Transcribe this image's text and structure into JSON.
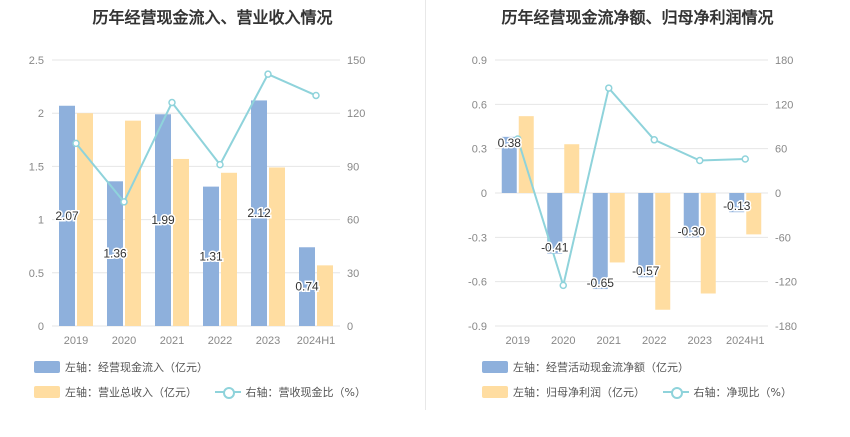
{
  "colors": {
    "bar_left": "#8eb0dc",
    "bar_right": "#ffdda1",
    "line": "#8fd3db",
    "axis_text": "#888888",
    "grid": "#e6e6e6"
  },
  "chart_data": [
    {
      "type": "bar",
      "title": "历年经营现金流入、营业收入情况",
      "categories": [
        "2019",
        "2020",
        "2021",
        "2022",
        "2023",
        "2024H1"
      ],
      "left_axis": {
        "ylim": [
          0,
          2.5
        ],
        "ticks": [
          "0",
          "0.5",
          "1",
          "1.5",
          "2",
          "2.5"
        ]
      },
      "right_axis": {
        "ylim": [
          0,
          150
        ],
        "ticks": [
          "0",
          "30",
          "60",
          "90",
          "120",
          "150"
        ]
      },
      "series": [
        {
          "name": "左轴：经营现金流入（亿元）",
          "axis": "left",
          "kind": "bar",
          "values": [
            2.07,
            1.36,
            1.99,
            1.31,
            2.12,
            0.74
          ],
          "labels": [
            "2.07",
            "1.36",
            "1.99",
            "1.31",
            "2.12",
            "0.74"
          ]
        },
        {
          "name": "左轴：营业总收入（亿元）",
          "axis": "left",
          "kind": "bar",
          "values": [
            2.0,
            1.93,
            1.57,
            1.44,
            1.49,
            0.57
          ]
        },
        {
          "name": "右轴：营收现金比（%）",
          "axis": "right",
          "kind": "line",
          "values": [
            103,
            70,
            126,
            91,
            142,
            130
          ]
        }
      ]
    },
    {
      "type": "bar",
      "title": "历年经营现金流净额、归母净利润情况",
      "categories": [
        "2019",
        "2020",
        "2021",
        "2022",
        "2023",
        "2024H1"
      ],
      "left_axis": {
        "ylim": [
          -0.9,
          0.9
        ],
        "ticks": [
          "-0.9",
          "-0.6",
          "-0.3",
          "0",
          "0.3",
          "0.6",
          "0.9"
        ]
      },
      "right_axis": {
        "ylim": [
          -180,
          180
        ],
        "ticks": [
          "-180",
          "-120",
          "-60",
          "0",
          "60",
          "120",
          "180"
        ]
      },
      "series": [
        {
          "name": "左轴：经营活动现金流净额（亿元）",
          "axis": "left",
          "kind": "bar",
          "values": [
            0.38,
            -0.41,
            -0.65,
            -0.57,
            -0.3,
            -0.13
          ],
          "labels": [
            "0.38",
            "-0.41",
            "-0.65",
            "-0.57",
            "-0.30",
            "-0.13"
          ]
        },
        {
          "name": "左轴：归母净利润（亿元）",
          "axis": "left",
          "kind": "bar",
          "values": [
            0.52,
            0.33,
            -0.47,
            -0.79,
            -0.68,
            -0.28
          ]
        },
        {
          "name": "右轴：净现比（%）",
          "axis": "right",
          "kind": "line",
          "values": [
            73,
            -125,
            142,
            72,
            44,
            46
          ]
        }
      ]
    }
  ]
}
